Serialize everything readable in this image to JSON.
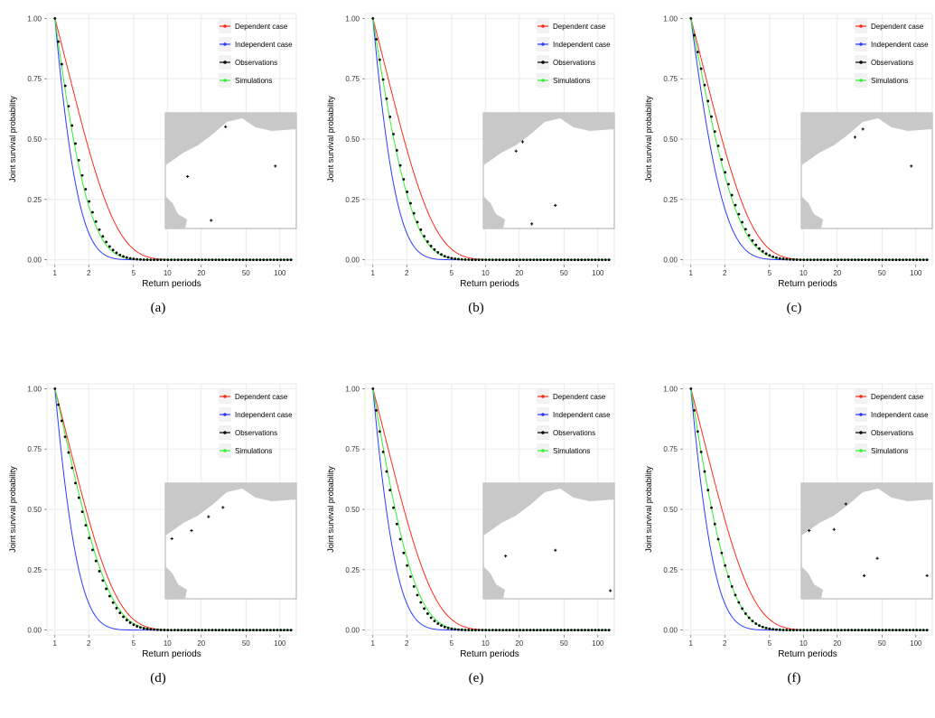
{
  "colors": {
    "dependent": "#ff2a1a",
    "independent": "#2a3cff",
    "observations": "#000000",
    "simulations": "#33ee33",
    "land": "#c8c8c8",
    "grid": "#ebebeb"
  },
  "chart_data": [
    {
      "type": "line",
      "caption": "(a)",
      "xlabel": "Return periods",
      "ylabel": "Joint survival probability",
      "x_scale": "log",
      "xlim": [
        0.85,
        140
      ],
      "ylim": [
        -0.02,
        1.02
      ],
      "x_ticks": [
        "1",
        "2",
        "5",
        "10",
        "20",
        "50",
        "100"
      ],
      "y_ticks": [
        "0.00",
        "0.25",
        "0.50",
        "0.75",
        "1.00"
      ],
      "grid": true,
      "legend_position": "top-right",
      "series": [
        {
          "name": "Dependent case"
        },
        {
          "name": "Independent case"
        },
        {
          "name": "Observations"
        },
        {
          "name": "Simulations"
        }
      ],
      "decay": {
        "dependent": 0.78,
        "independent": 2.2,
        "observations": 1.4,
        "simulations": 1.5
      },
      "stations": [
        [
          0.46,
          0.12
        ],
        [
          0.17,
          0.55
        ],
        [
          0.35,
          0.93
        ],
        [
          0.84,
          0.46
        ]
      ]
    },
    {
      "type": "line",
      "caption": "(b)",
      "xlabel": "Return periods",
      "ylabel": "Joint survival probability",
      "x_scale": "log",
      "xlim": [
        0.85,
        140
      ],
      "ylim": [
        -0.02,
        1.02
      ],
      "x_ticks": [
        "1",
        "2",
        "5",
        "10",
        "20",
        "50",
        "100"
      ],
      "y_ticks": [
        "0.00",
        "0.25",
        "0.50",
        "0.75",
        "1.00"
      ],
      "grid": true,
      "legend_position": "top-right",
      "series": [
        {
          "name": "Dependent case"
        },
        {
          "name": "Independent case"
        },
        {
          "name": "Observations"
        },
        {
          "name": "Simulations"
        }
      ],
      "decay": {
        "dependent": 0.78,
        "independent": 2.2,
        "observations": 1.25,
        "simulations": 1.3
      },
      "stations": [
        [
          0.25,
          0.33
        ],
        [
          0.3,
          0.25
        ],
        [
          0.55,
          0.8
        ],
        [
          0.37,
          0.96
        ]
      ]
    },
    {
      "type": "line",
      "caption": "(c)",
      "xlabel": "Return periods",
      "ylabel": "Joint survival probability",
      "x_scale": "log",
      "xlim": [
        0.85,
        140
      ],
      "ylim": [
        -0.02,
        1.02
      ],
      "x_ticks": [
        "1",
        "2",
        "5",
        "10",
        "20",
        "50",
        "100"
      ],
      "y_ticks": [
        "0.00",
        "0.25",
        "0.50",
        "0.75",
        "1.00"
      ],
      "grid": true,
      "legend_position": "top-right",
      "series": [
        {
          "name": "Dependent case"
        },
        {
          "name": "Independent case"
        },
        {
          "name": "Observations"
        },
        {
          "name": "Simulations"
        }
      ],
      "decay": {
        "dependent": 0.78,
        "independent": 1.55,
        "observations": 1.0,
        "simulations": 1.05
      },
      "stations": [
        [
          0.47,
          0.14
        ],
        [
          0.41,
          0.21
        ],
        [
          0.84,
          0.46
        ]
      ]
    },
    {
      "type": "line",
      "caption": "(d)",
      "xlabel": "Return periods",
      "ylabel": "Joint survival probability",
      "x_scale": "log",
      "xlim": [
        0.85,
        140
      ],
      "ylim": [
        -0.02,
        1.02
      ],
      "x_ticks": [
        "1",
        "2",
        "5",
        "10",
        "20",
        "50",
        "100"
      ],
      "y_ticks": [
        "0.00",
        "0.25",
        "0.50",
        "0.75",
        "1.00"
      ],
      "grid": true,
      "legend_position": "top-right",
      "series": [
        {
          "name": "Dependent case"
        },
        {
          "name": "Independent case"
        },
        {
          "name": "Observations"
        },
        {
          "name": "Simulations"
        }
      ],
      "decay": {
        "dependent": 0.78,
        "independent": 2.2,
        "observations": 0.95,
        "simulations": 0.9
      },
      "stations": [
        [
          0.44,
          0.21
        ],
        [
          0.33,
          0.29
        ],
        [
          0.2,
          0.41
        ],
        [
          0.05,
          0.48
        ]
      ]
    },
    {
      "type": "line",
      "caption": "(e)",
      "xlabel": "Return periods",
      "ylabel": "Joint survival probability",
      "x_scale": "log",
      "xlim": [
        0.85,
        140
      ],
      "ylim": [
        -0.02,
        1.02
      ],
      "x_ticks": [
        "1",
        "2",
        "5",
        "10",
        "20",
        "50",
        "100"
      ],
      "y_ticks": [
        "0.00",
        "0.25",
        "0.50",
        "0.75",
        "1.00"
      ],
      "grid": true,
      "legend_position": "top-right",
      "series": [
        {
          "name": "Dependent case"
        },
        {
          "name": "Independent case"
        },
        {
          "name": "Observations"
        },
        {
          "name": "Simulations"
        }
      ],
      "decay": {
        "dependent": 0.78,
        "independent": 2.2,
        "observations": 1.3,
        "simulations": 1.2
      },
      "stations": [
        [
          0.17,
          0.63
        ],
        [
          0.55,
          0.58
        ],
        [
          0.97,
          0.93
        ]
      ]
    },
    {
      "type": "line",
      "caption": "(f)",
      "xlabel": "Return periods",
      "ylabel": "Joint survival probability",
      "x_scale": "log",
      "xlim": [
        0.85,
        140
      ],
      "ylim": [
        -0.02,
        1.02
      ],
      "x_ticks": [
        "1",
        "2",
        "5",
        "10",
        "20",
        "50",
        "100"
      ],
      "y_ticks": [
        "0.00",
        "0.25",
        "0.50",
        "0.75",
        "1.00"
      ],
      "grid": true,
      "legend_position": "top-right",
      "series": [
        {
          "name": "Dependent case"
        },
        {
          "name": "Independent case"
        },
        {
          "name": "Observations"
        },
        {
          "name": "Simulations"
        }
      ],
      "decay": {
        "dependent": 0.78,
        "independent": 2.2,
        "observations": 1.3,
        "simulations": 1.3
      },
      "stations": [
        [
          0.34,
          0.18
        ],
        [
          0.25,
          0.4
        ],
        [
          0.06,
          0.41
        ],
        [
          0.58,
          0.65
        ],
        [
          0.48,
          0.8
        ],
        [
          0.96,
          0.8
        ]
      ]
    }
  ]
}
